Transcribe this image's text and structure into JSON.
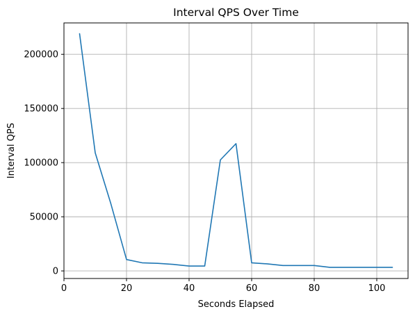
{
  "chart_data": {
    "type": "line",
    "title": "Interval QPS Over Time",
    "xlabel": "Seconds Elapsed",
    "ylabel": "Interval QPS",
    "xlim": [
      0,
      110
    ],
    "ylim": [
      -7000,
      229000
    ],
    "xticks": [
      0,
      20,
      40,
      60,
      80,
      100
    ],
    "yticks": [
      0,
      50000,
      100000,
      150000,
      200000
    ],
    "grid": true,
    "color": "#1f77b4",
    "series": [
      {
        "x": [
          5,
          10,
          15,
          20,
          25,
          30,
          35,
          40,
          45,
          50,
          55,
          60,
          65,
          70,
          75,
          80,
          85,
          90,
          95,
          100,
          105
        ],
        "values": [
          219000,
          109000,
          62000,
          10500,
          7500,
          7000,
          6000,
          4500,
          4500,
          102500,
          117500,
          7500,
          6500,
          5000,
          5000,
          5000,
          3300,
          3300,
          3300,
          3300,
          3300
        ]
      }
    ]
  }
}
